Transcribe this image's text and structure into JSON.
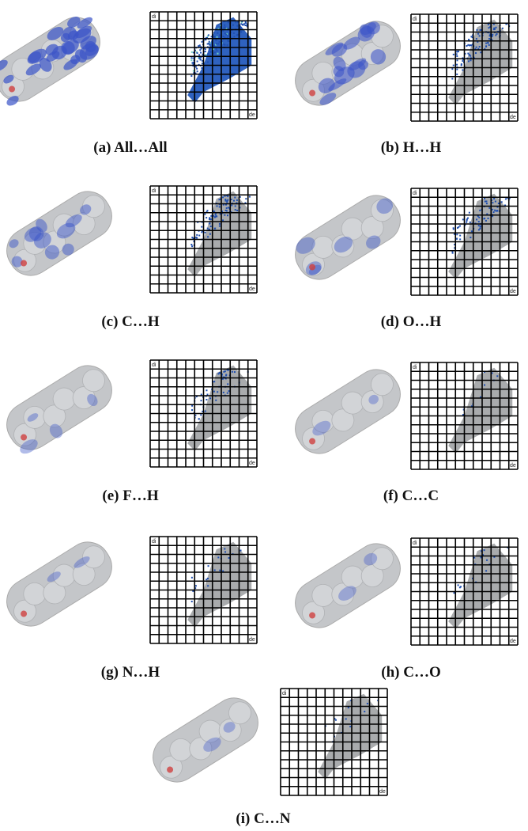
{
  "panels": [
    {
      "caption": "(a) All…All"
    },
    {
      "caption": "(b) H…H"
    },
    {
      "caption": "(c) C…H"
    },
    {
      "caption": "(d) O…H"
    },
    {
      "caption": "(e) F…H"
    },
    {
      "caption": "(f) C…C"
    },
    {
      "caption": "(g) N…H"
    },
    {
      "caption": "(h) C…O"
    },
    {
      "caption": "(i) C…N"
    }
  ],
  "plot_labels": {
    "y": "di",
    "x": "de"
  }
}
